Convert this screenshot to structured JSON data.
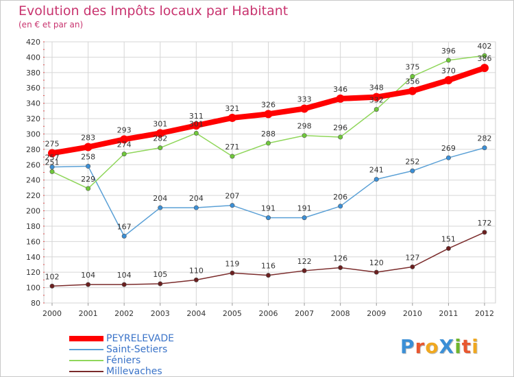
{
  "title": "Evolution des Impôts locaux par Habitant",
  "subtitle": "(en € et par an)",
  "logo": {
    "text": "ProXiti",
    "letters": [
      {
        "ch": "P",
        "color": "#3b8fd6"
      },
      {
        "ch": "r",
        "color": "#e8572f"
      },
      {
        "ch": "o",
        "color": "#f0a820"
      },
      {
        "ch": "X",
        "color": "#3b8fd6"
      },
      {
        "ch": "i",
        "color": "#6fb52c"
      },
      {
        "ch": "t",
        "color": "#e8572f"
      },
      {
        "ch": "i",
        "color": "#f0a820"
      }
    ]
  },
  "chart_data": {
    "type": "line",
    "title": "Evolution des Impôts locaux par Habitant",
    "subtitle": "(en € et par an)",
    "x": [
      2000,
      2001,
      2002,
      2003,
      2004,
      2005,
      2006,
      2007,
      2008,
      2009,
      2010,
      2011,
      2012
    ],
    "ylim": [
      80,
      420
    ],
    "yticks": [
      80,
      100,
      120,
      140,
      160,
      180,
      200,
      220,
      240,
      260,
      280,
      300,
      320,
      340,
      360,
      380,
      400,
      420
    ],
    "grid": true,
    "legend_position": "bottom-left",
    "series": [
      {
        "name": "PEYRELEVADE",
        "color": "#ff0000",
        "point_color": "#ff0000",
        "emphasis": true,
        "values": [
          275,
          283,
          293,
          301,
          311,
          321,
          326,
          333,
          346,
          348,
          356,
          370,
          386
        ]
      },
      {
        "name": "Saint-Setiers",
        "color": "#5aa0d6",
        "point_color": "#3b8fd6",
        "values": [
          257,
          258,
          167,
          204,
          204,
          207,
          191,
          191,
          206,
          241,
          252,
          269,
          282
        ]
      },
      {
        "name": "Féniers",
        "color": "#8fd65a",
        "point_color": "#6fc83a",
        "values": [
          251,
          229,
          274,
          282,
          301,
          271,
          288,
          298,
          296,
          332,
          375,
          396,
          402
        ]
      },
      {
        "name": "Millevaches",
        "color": "#7a2a2a",
        "point_color": "#6b1f1f",
        "values": [
          102,
          104,
          104,
          105,
          110,
          119,
          116,
          122,
          126,
          120,
          127,
          151,
          172
        ]
      }
    ]
  }
}
